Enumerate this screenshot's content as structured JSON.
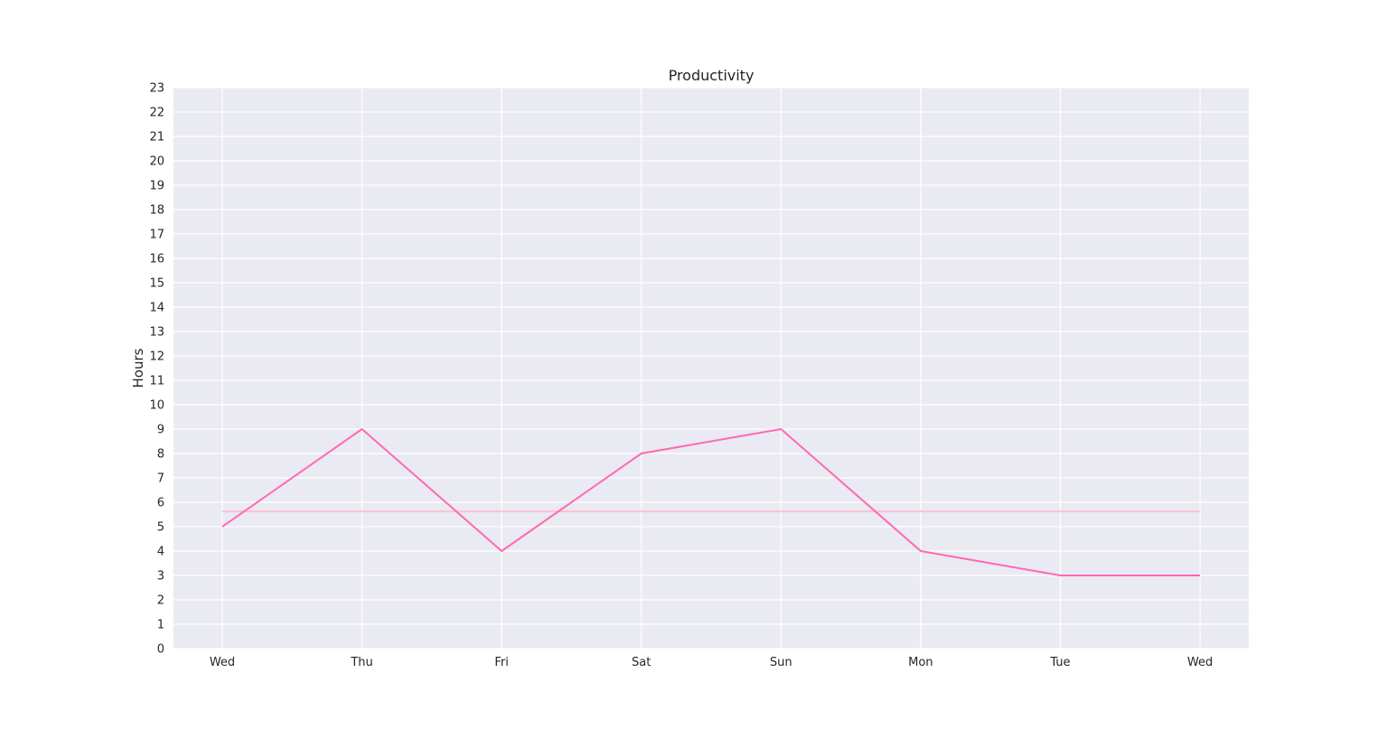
{
  "chart_data": {
    "type": "line",
    "title": "Productivity",
    "xlabel": "",
    "ylabel": "Hours",
    "categories": [
      "Wed",
      "Thu",
      "Fri",
      "Sat",
      "Sun",
      "Mon",
      "Tue",
      "Wed"
    ],
    "series": [
      {
        "values": [
          5,
          9,
          4,
          8,
          9,
          4,
          3,
          3
        ],
        "color": "#ff69b4"
      },
      {
        "values": [
          5.625,
          5.625,
          5.625,
          5.625,
          5.625,
          5.625,
          5.625,
          5.625
        ],
        "color": "#ffc0cb"
      }
    ],
    "ylim": [
      0,
      23
    ],
    "yticks": [
      0,
      1,
      2,
      3,
      4,
      5,
      6,
      7,
      8,
      9,
      10,
      11,
      12,
      13,
      14,
      15,
      16,
      17,
      18,
      19,
      20,
      21,
      22,
      23
    ],
    "grid": true,
    "background_color": "#eaeaf2",
    "grid_color": "#ffffff"
  }
}
